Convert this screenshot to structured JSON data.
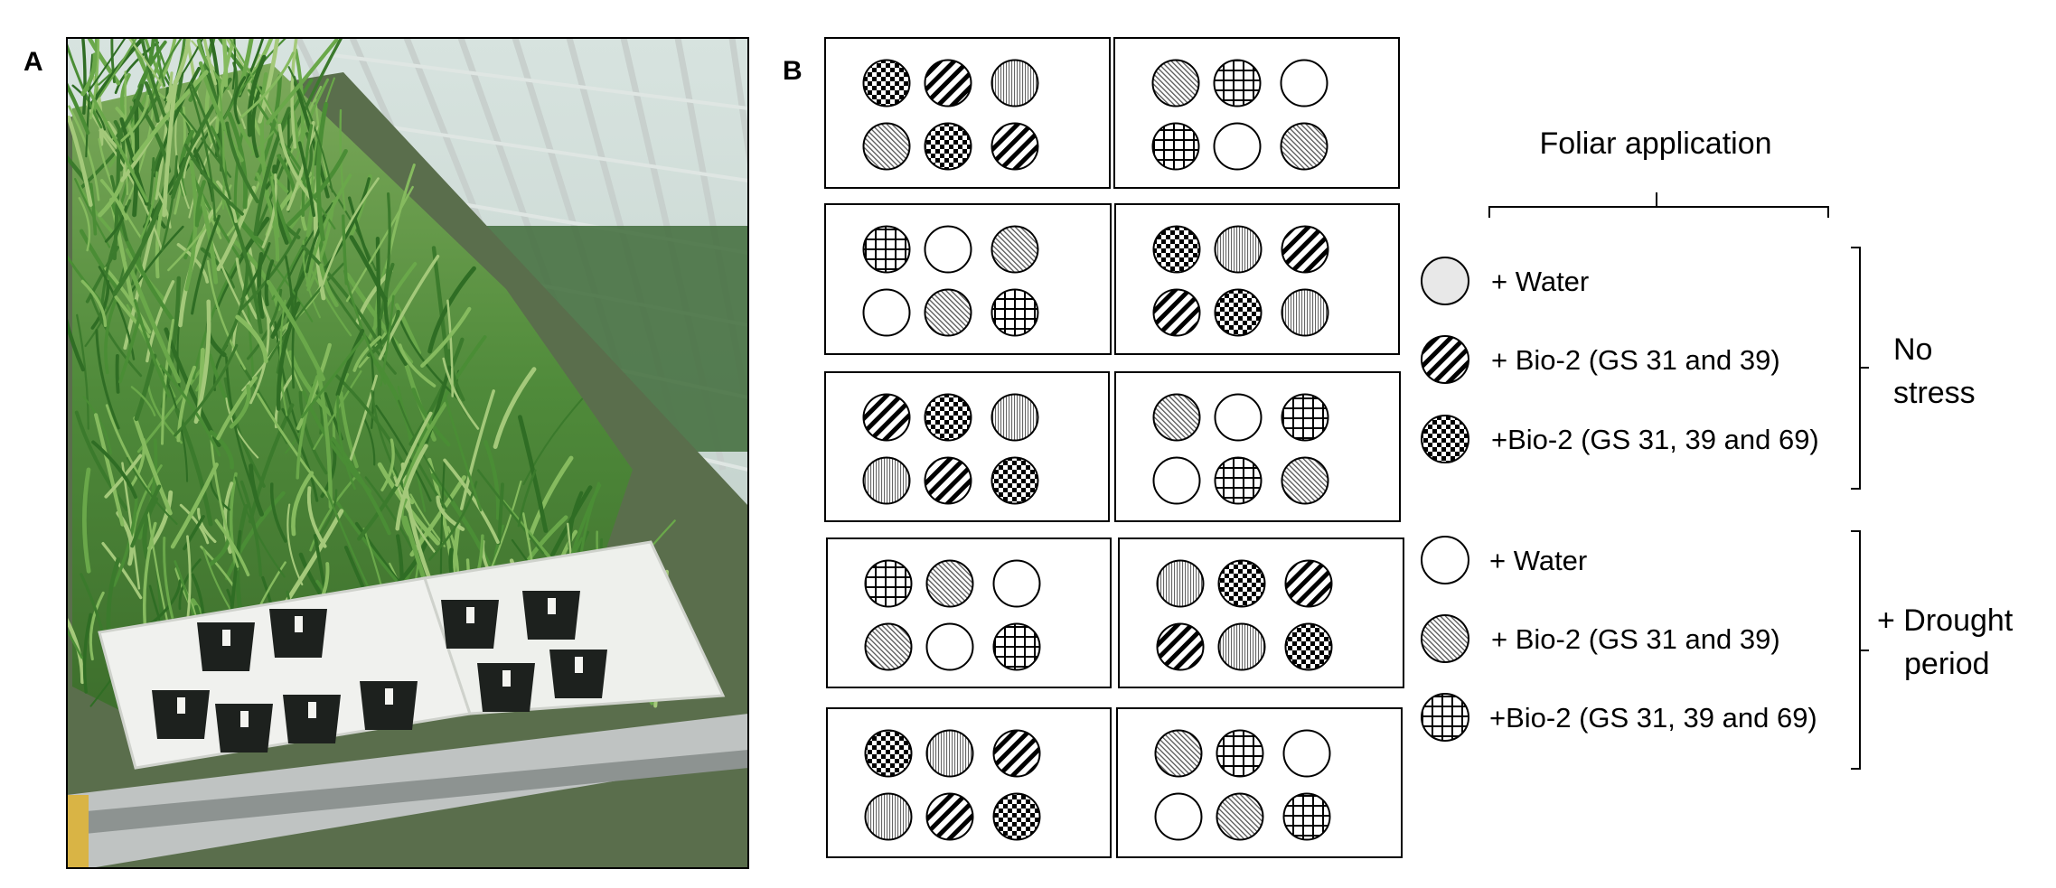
{
  "panels": {
    "a_label": "A",
    "b_label": "B"
  },
  "photo": {
    "subject": "greenhouse-bench-with-potted-wheat"
  },
  "legend": {
    "title": "Foliar application",
    "items": [
      {
        "pattern": "gray",
        "label": "+ Water"
      },
      {
        "pattern": "diag",
        "label": "+ Bio-2 (GS 31 and 39)"
      },
      {
        "pattern": "check",
        "label": "+Bio-2 (GS 31, 39 and 69)"
      },
      {
        "pattern": "white",
        "label": "+ Water"
      },
      {
        "pattern": "hatch",
        "label": "+ Bio-2 (GS 31 and 39)"
      },
      {
        "pattern": "grid",
        "label": "+Bio-2 (GS 31, 39 and 69)"
      }
    ],
    "groups": [
      {
        "lines": [
          "No",
          "stress"
        ]
      },
      {
        "lines": [
          "+ Drought",
          "period"
        ]
      }
    ]
  },
  "layout": {
    "trays": [
      [
        "check",
        "diag",
        "vlines",
        "hatch",
        "check",
        "diag"
      ],
      [
        "hatch",
        "grid",
        "white",
        "grid",
        "white",
        "hatch"
      ],
      [
        "grid",
        "white",
        "hatch",
        "white",
        "hatch",
        "grid"
      ],
      [
        "check",
        "vlines",
        "diag",
        "diag",
        "check",
        "vlines"
      ],
      [
        "diag",
        "check",
        "vlines",
        "vlines",
        "diag",
        "check"
      ],
      [
        "hatch",
        "white",
        "grid",
        "white",
        "grid",
        "hatch"
      ],
      [
        "grid",
        "hatch",
        "white",
        "hatch",
        "white",
        "grid"
      ],
      [
        "vlines",
        "check",
        "diag",
        "diag",
        "vlines",
        "check"
      ],
      [
        "check",
        "vlines",
        "diag",
        "vlines",
        "diag",
        "check"
      ],
      [
        "hatch",
        "grid",
        "white",
        "white",
        "hatch",
        "grid"
      ]
    ]
  }
}
